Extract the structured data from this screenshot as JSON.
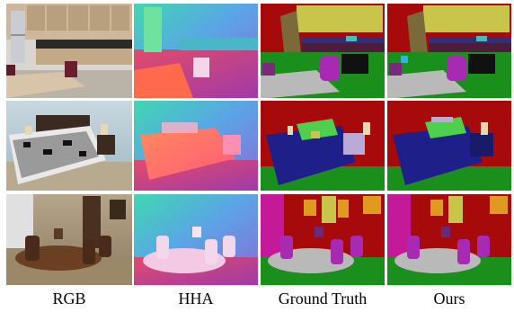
{
  "figure": {
    "columns": [
      {
        "key": "rgb",
        "label": "RGB"
      },
      {
        "key": "hha",
        "label": "HHA"
      },
      {
        "key": "gt",
        "label": "Ground Truth"
      },
      {
        "key": "ours",
        "label": "Ours"
      }
    ],
    "rows": [
      {
        "key": "kitchen"
      },
      {
        "key": "bedroom"
      },
      {
        "key": "dining"
      }
    ]
  }
}
